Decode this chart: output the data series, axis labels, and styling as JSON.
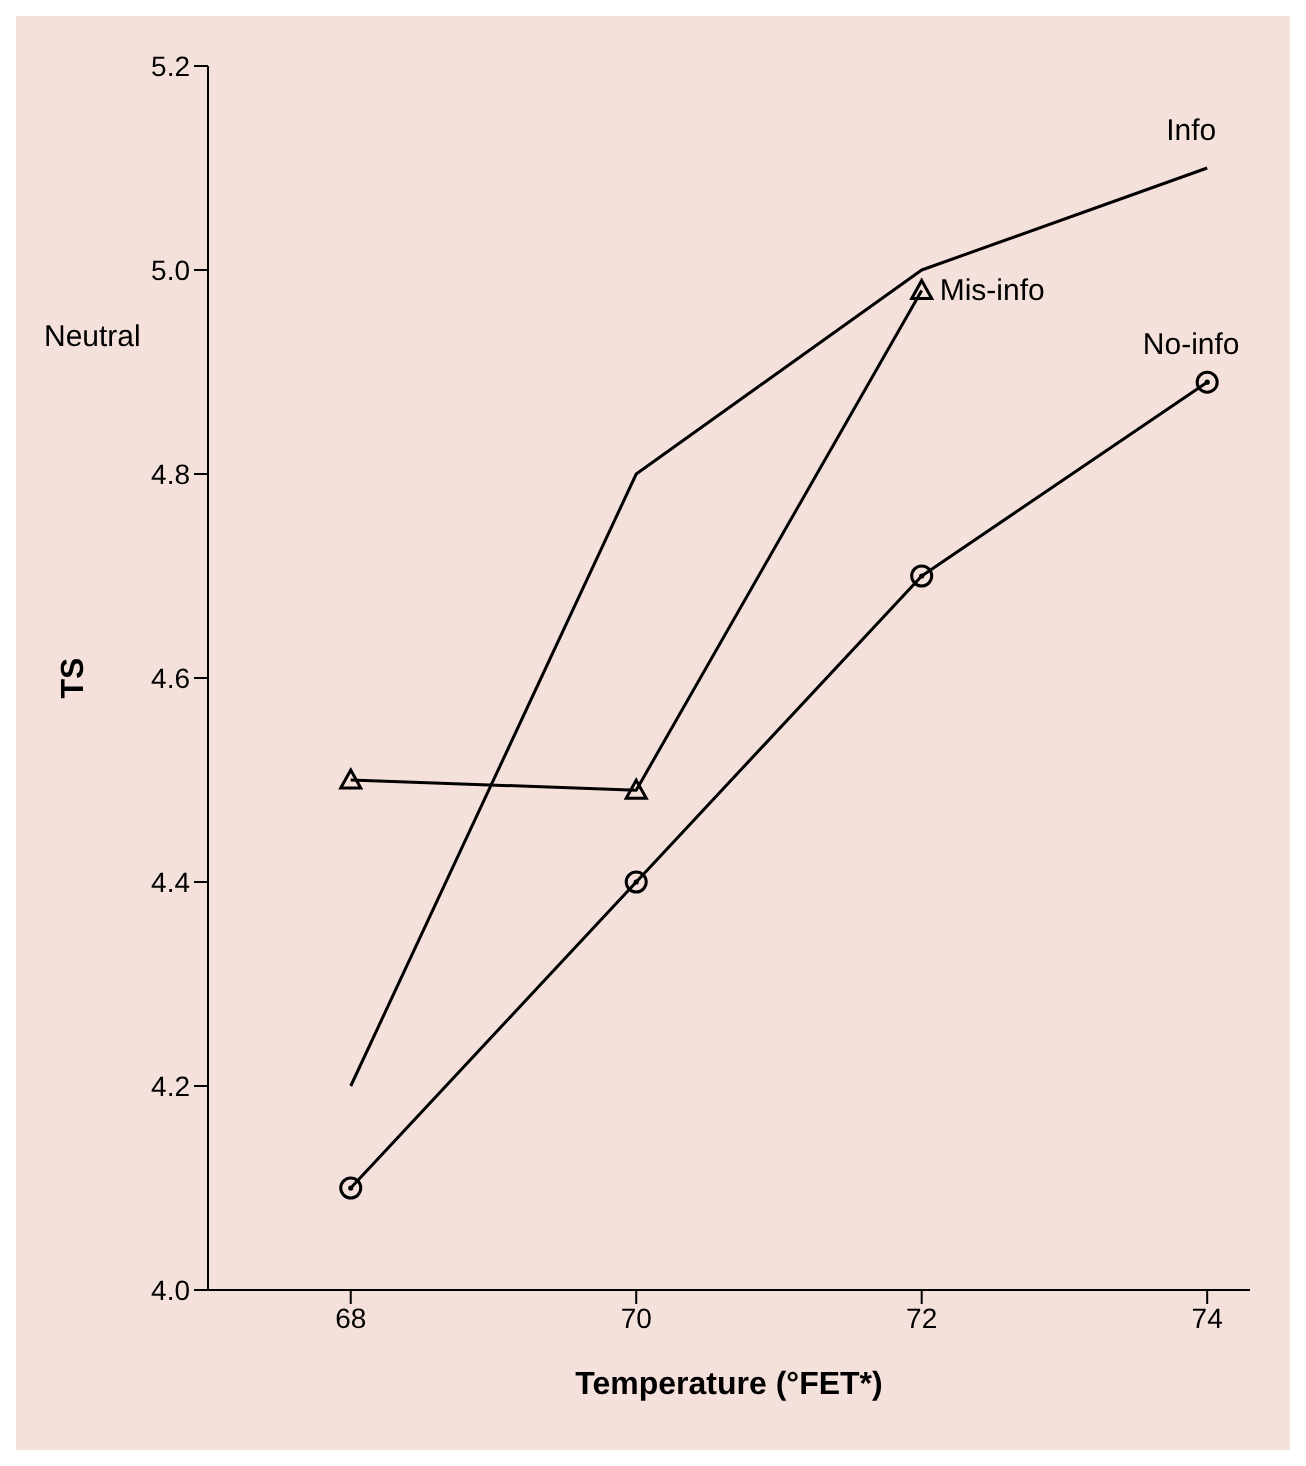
{
  "chart_data": {
    "type": "line",
    "xlabel": "Temperature (°FET*)",
    "ylabel": "TS",
    "x": [
      68,
      70,
      72,
      74
    ],
    "series": [
      {
        "name": "Info",
        "color": "#000000",
        "marker": "none",
        "values": [
          4.2,
          4.8,
          5.0,
          5.1
        ]
      },
      {
        "name": "Mis-info",
        "color": "#000000",
        "marker": "triangle",
        "values": [
          4.5,
          4.49,
          4.98,
          null
        ]
      },
      {
        "name": "No-info",
        "color": "#000000",
        "marker": "circle",
        "values": [
          4.1,
          4.4,
          4.7,
          4.89
        ]
      }
    ],
    "xlim": [
      67,
      74.3
    ],
    "xticks": [
      68,
      70,
      72,
      74
    ],
    "ylim": [
      4.0,
      5.2
    ],
    "yticks": [
      {
        "value": 4.0,
        "label": "4.0"
      },
      {
        "value": 4.2,
        "label": "4.2"
      },
      {
        "value": 4.4,
        "label": "4.4"
      },
      {
        "value": 4.6,
        "label": "4.6"
      },
      {
        "value": 4.8,
        "label": "4.8"
      },
      {
        "value": 5.0,
        "label": "5.0"
      },
      {
        "value": 5.2,
        "label": "5.2"
      }
    ],
    "annotations": [
      "Neutral"
    ],
    "grid": false,
    "legend": false,
    "line_style": "solid"
  }
}
